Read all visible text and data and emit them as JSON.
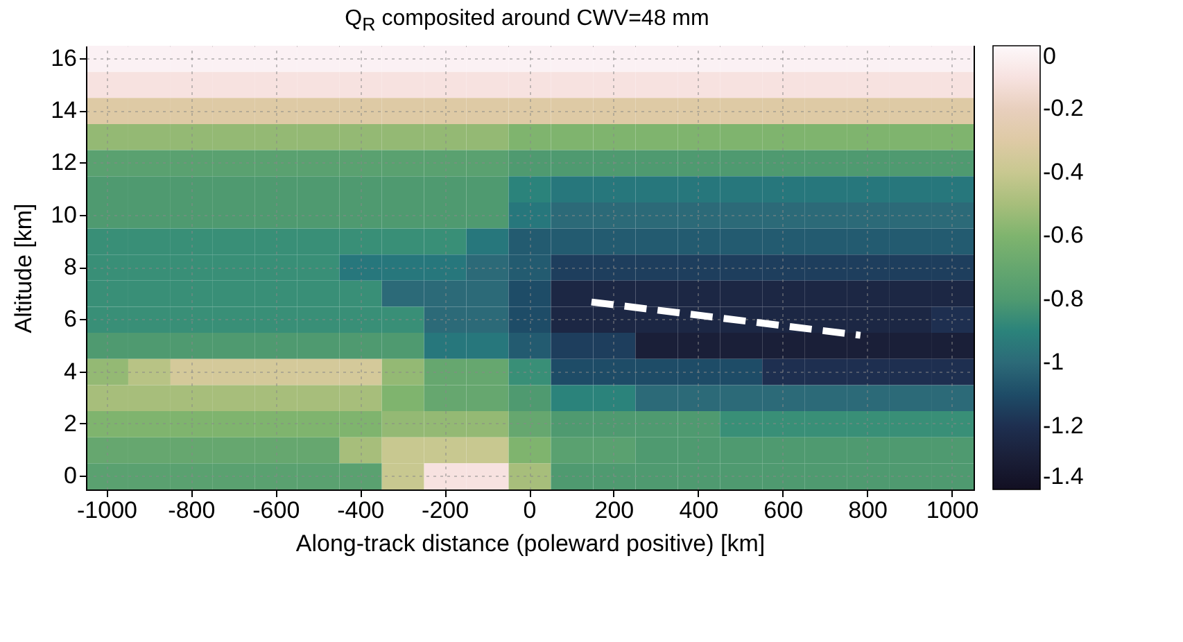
{
  "chart_data": {
    "type": "heatmap",
    "title": "Q$_{R}$ composited around CWV=48 mm",
    "xlabel": "Along-track distance (poleward positive) [km]",
    "ylabel": "Altitude [km]",
    "categories": [
      "-1000",
      null,
      "-800",
      null,
      "-600",
      null,
      "-400",
      null,
      "-200",
      null,
      "0",
      null,
      "200",
      null,
      "400",
      null,
      "600",
      null,
      "800",
      null,
      "1000"
    ],
    "y_categories": [
      "16",
      null,
      "14",
      null,
      "12",
      null,
      "10",
      null,
      "8",
      null,
      "6",
      null,
      "4",
      null,
      "2",
      null,
      "0"
    ],
    "cells": [
      [
        -0.03,
        -0.03,
        -0.03,
        -0.03,
        -0.03,
        -0.03,
        -0.03,
        -0.03,
        -0.03,
        -0.03,
        -0.03,
        -0.03,
        -0.03,
        -0.03,
        -0.03,
        -0.03,
        -0.03,
        -0.03,
        -0.03,
        -0.03,
        -0.03
      ],
      [
        -0.1,
        -0.1,
        -0.1,
        -0.1,
        -0.1,
        -0.1,
        -0.1,
        -0.1,
        -0.1,
        -0.1,
        -0.1,
        -0.1,
        -0.1,
        -0.1,
        -0.1,
        -0.1,
        -0.1,
        -0.1,
        -0.1,
        -0.1,
        -0.1
      ],
      [
        -0.3,
        -0.3,
        -0.3,
        -0.3,
        -0.3,
        -0.3,
        -0.3,
        -0.3,
        -0.3,
        -0.3,
        -0.3,
        -0.3,
        -0.3,
        -0.3,
        -0.3,
        -0.3,
        -0.3,
        -0.3,
        -0.3,
        -0.3,
        -0.3
      ],
      [
        -0.55,
        -0.55,
        -0.55,
        -0.55,
        -0.55,
        -0.55,
        -0.55,
        -0.55,
        -0.55,
        -0.55,
        -0.6,
        -0.6,
        -0.6,
        -0.6,
        -0.6,
        -0.6,
        -0.6,
        -0.6,
        -0.6,
        -0.6,
        -0.6
      ],
      [
        -0.75,
        -0.75,
        -0.75,
        -0.75,
        -0.75,
        -0.75,
        -0.75,
        -0.75,
        -0.75,
        -0.75,
        -0.8,
        -0.8,
        -0.8,
        -0.8,
        -0.8,
        -0.8,
        -0.8,
        -0.8,
        -0.8,
        -0.8,
        -0.8
      ],
      [
        -0.8,
        -0.8,
        -0.8,
        -0.8,
        -0.8,
        -0.8,
        -0.8,
        -0.8,
        -0.8,
        -0.8,
        -0.9,
        -0.95,
        -0.95,
        -0.95,
        -0.95,
        -0.95,
        -0.95,
        -0.95,
        -0.95,
        -0.95,
        -0.95
      ],
      [
        -0.8,
        -0.8,
        -0.8,
        -0.8,
        -0.8,
        -0.8,
        -0.8,
        -0.8,
        -0.8,
        -0.8,
        -0.95,
        -1.0,
        -1.0,
        -1.0,
        -1.0,
        -1.0,
        -1.0,
        -1.0,
        -1.0,
        -1.0,
        -1.0
      ],
      [
        -0.85,
        -0.85,
        -0.85,
        -0.85,
        -0.85,
        -0.85,
        -0.85,
        -0.85,
        -0.85,
        -0.95,
        -1.05,
        -1.05,
        -1.05,
        -1.05,
        -1.05,
        -1.05,
        -1.05,
        -1.05,
        -1.05,
        -1.05,
        -1.05
      ],
      [
        -0.85,
        -0.85,
        -0.85,
        -0.85,
        -0.85,
        -0.85,
        -0.95,
        -0.95,
        -0.95,
        -1.0,
        -1.05,
        -1.15,
        -1.15,
        -1.15,
        -1.15,
        -1.15,
        -1.15,
        -1.15,
        -1.15,
        -1.15,
        -1.15
      ],
      [
        -0.85,
        -0.85,
        -0.85,
        -0.85,
        -0.85,
        -0.85,
        -0.85,
        -1.0,
        -1.0,
        -1.0,
        -1.1,
        -1.25,
        -1.25,
        -1.25,
        -1.25,
        -1.25,
        -1.25,
        -1.25,
        -1.25,
        -1.25,
        -1.25
      ],
      [
        -0.85,
        -0.85,
        -0.85,
        -0.85,
        -0.85,
        -0.85,
        -0.85,
        -0.85,
        -1.0,
        -1.0,
        -1.1,
        -1.25,
        -1.25,
        -1.25,
        -1.25,
        -1.25,
        -1.25,
        -1.25,
        -1.25,
        -1.25,
        -1.2
      ],
      [
        -0.8,
        -0.8,
        -0.8,
        -0.8,
        -0.8,
        -0.8,
        -0.8,
        -0.8,
        -0.95,
        -0.95,
        -1.05,
        -1.15,
        -1.15,
        -1.3,
        -1.3,
        -1.3,
        -1.3,
        -1.3,
        -1.3,
        -1.3,
        -1.3
      ],
      [
        -0.55,
        -0.45,
        -0.35,
        -0.35,
        -0.35,
        -0.35,
        -0.35,
        -0.55,
        -0.7,
        -0.7,
        -0.85,
        -1.1,
        -1.1,
        -1.1,
        -1.1,
        -1.1,
        -1.2,
        -1.2,
        -1.2,
        -1.2,
        -1.2
      ],
      [
        -0.5,
        -0.5,
        -0.5,
        -0.5,
        -0.5,
        -0.5,
        -0.5,
        -0.6,
        -0.7,
        -0.7,
        -0.8,
        -0.9,
        -0.9,
        -1.0,
        -1.0,
        -1.0,
        -1.0,
        -1.0,
        -1.0,
        -1.0,
        -1.0
      ],
      [
        -0.6,
        -0.6,
        -0.6,
        -0.6,
        -0.6,
        -0.6,
        -0.6,
        -0.55,
        -0.55,
        -0.55,
        -0.7,
        -0.8,
        -0.8,
        -0.8,
        -0.8,
        -0.85,
        -0.85,
        -0.85,
        -0.85,
        -0.85,
        -0.85
      ],
      [
        -0.7,
        -0.7,
        -0.7,
        -0.7,
        -0.7,
        -0.7,
        -0.5,
        -0.4,
        -0.4,
        -0.4,
        -0.6,
        -0.75,
        -0.75,
        -0.8,
        -0.8,
        -0.8,
        -0.8,
        -0.8,
        -0.8,
        -0.8,
        -0.8
      ],
      [
        -0.75,
        -0.75,
        -0.75,
        -0.75,
        -0.75,
        -0.75,
        -0.75,
        -0.4,
        -0.1,
        -0.1,
        -0.5,
        -0.8,
        -0.8,
        -0.8,
        -0.8,
        -0.8,
        -0.8,
        -0.8,
        -0.8,
        -0.8,
        -0.8
      ]
    ],
    "clim": [
      -1.4,
      0
    ],
    "cticks": [
      0,
      -0.2,
      -0.4,
      -0.6,
      -0.8,
      -1,
      -1.2,
      -1.4
    ],
    "grid": true
  }
}
